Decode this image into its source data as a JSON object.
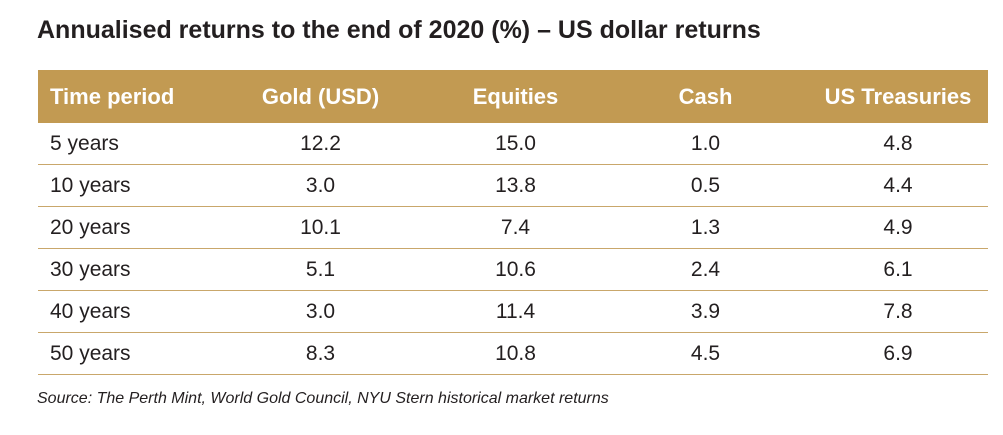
{
  "title": "Annualised returns to the end of 2020 (%) – US dollar returns",
  "table": {
    "headers": [
      "Time period",
      "Gold (USD)",
      "Equities",
      "Cash",
      "US Treasuries"
    ],
    "rows": [
      [
        "5 years",
        "12.2",
        "15.0",
        "1.0",
        "4.8"
      ],
      [
        "10 years",
        "3.0",
        "13.8",
        "0.5",
        "4.4"
      ],
      [
        "20 years",
        "10.1",
        "7.4",
        "1.3",
        "4.9"
      ],
      [
        "30 years",
        "5.1",
        "10.6",
        "2.4",
        "6.1"
      ],
      [
        "40 years",
        "3.0",
        "11.4",
        "3.9",
        "7.8"
      ],
      [
        "50 years",
        "8.3",
        "10.8",
        "4.5",
        "6.9"
      ]
    ]
  },
  "source": "Source: The Perth Mint, World Gold Council, NYU Stern historical market returns",
  "colors": {
    "header_background": "#c29a52",
    "header_text": "#ffffff",
    "row_divider": "#c9a76b",
    "body_text": "#231f20"
  }
}
